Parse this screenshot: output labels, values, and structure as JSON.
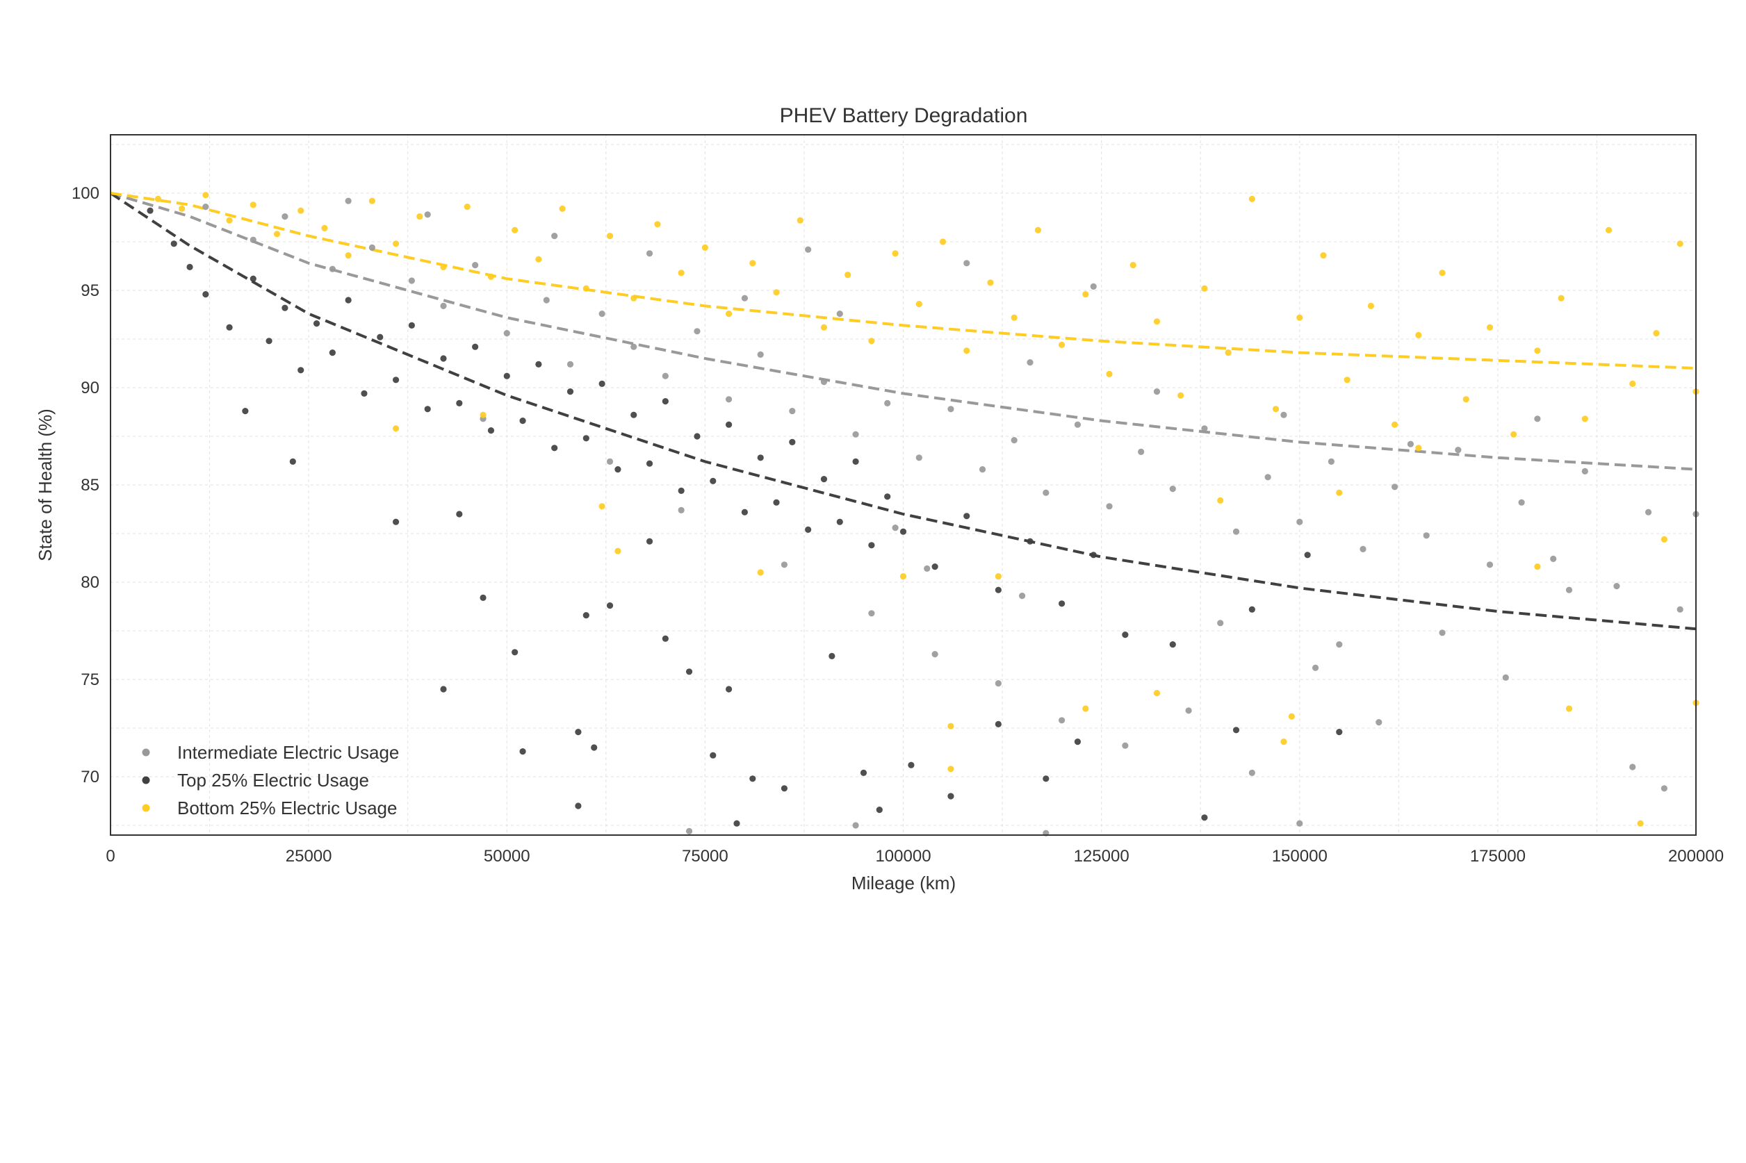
{
  "chart_data": {
    "type": "scatter",
    "title": "PHEV Battery Degradation",
    "xlabel": "Mileage (km)",
    "ylabel": "State of Health (%)",
    "xlim": [
      0,
      200000
    ],
    "ylim": [
      67,
      103
    ],
    "x_ticks": [
      "0",
      "25000",
      "50000",
      "75000",
      "100000",
      "125000",
      "150000",
      "175000",
      "200000"
    ],
    "y_ticks": [
      "70",
      "75",
      "80",
      "85",
      "90",
      "95",
      "100"
    ],
    "grid": true,
    "legend_position": "lower-left",
    "series": [
      {
        "name": "Intermediate Electric Usage",
        "color": "#999999",
        "trend": [
          [
            0,
            100
          ],
          [
            10000,
            98.8
          ],
          [
            25000,
            96.4
          ],
          [
            50000,
            93.6
          ],
          [
            75000,
            91.5
          ],
          [
            100000,
            89.7
          ],
          [
            125000,
            88.3
          ],
          [
            150000,
            87.2
          ],
          [
            175000,
            86.4
          ],
          [
            200000,
            85.8
          ]
        ],
        "points": [
          [
            12000,
            99.3
          ],
          [
            18000,
            97.6
          ],
          [
            22000,
            98.8
          ],
          [
            28000,
            96.1
          ],
          [
            33000,
            97.2
          ],
          [
            38000,
            95.5
          ],
          [
            42000,
            94.2
          ],
          [
            46000,
            96.3
          ],
          [
            50000,
            92.8
          ],
          [
            55000,
            94.5
          ],
          [
            58000,
            91.2
          ],
          [
            62000,
            93.8
          ],
          [
            66000,
            92.1
          ],
          [
            70000,
            90.6
          ],
          [
            74000,
            92.9
          ],
          [
            78000,
            89.4
          ],
          [
            82000,
            91.7
          ],
          [
            86000,
            88.8
          ],
          [
            90000,
            90.3
          ],
          [
            94000,
            87.6
          ],
          [
            98000,
            89.2
          ],
          [
            102000,
            86.4
          ],
          [
            106000,
            88.9
          ],
          [
            110000,
            85.8
          ],
          [
            114000,
            87.3
          ],
          [
            118000,
            84.6
          ],
          [
            122000,
            88.1
          ],
          [
            126000,
            83.9
          ],
          [
            130000,
            86.7
          ],
          [
            134000,
            84.8
          ],
          [
            138000,
            87.9
          ],
          [
            142000,
            82.6
          ],
          [
            146000,
            85.4
          ],
          [
            150000,
            83.1
          ],
          [
            154000,
            86.2
          ],
          [
            158000,
            81.7
          ],
          [
            162000,
            84.9
          ],
          [
            166000,
            82.4
          ],
          [
            170000,
            86.8
          ],
          [
            174000,
            80.9
          ],
          [
            178000,
            84.1
          ],
          [
            182000,
            81.2
          ],
          [
            186000,
            85.7
          ],
          [
            190000,
            79.8
          ],
          [
            194000,
            83.6
          ],
          [
            198000,
            78.6
          ],
          [
            47000,
            88.4
          ],
          [
            63000,
            86.2
          ],
          [
            72000,
            83.7
          ],
          [
            85000,
            80.9
          ],
          [
            96000,
            78.4
          ],
          [
            104000,
            76.3
          ],
          [
            112000,
            74.8
          ],
          [
            120000,
            72.9
          ],
          [
            128000,
            71.6
          ],
          [
            136000,
            73.4
          ],
          [
            144000,
            70.2
          ],
          [
            152000,
            75.6
          ],
          [
            160000,
            72.8
          ],
          [
            168000,
            77.4
          ],
          [
            176000,
            75.1
          ],
          [
            184000,
            79.6
          ],
          [
            192000,
            70.5
          ],
          [
            196000,
            69.4
          ],
          [
            88000,
            97.1
          ],
          [
            108000,
            96.4
          ],
          [
            124000,
            95.2
          ],
          [
            30000,
            99.6
          ],
          [
            40000,
            98.9
          ],
          [
            56000,
            97.8
          ],
          [
            68000,
            96.9
          ],
          [
            80000,
            94.6
          ],
          [
            92000,
            93.8
          ],
          [
            116000,
            91.3
          ],
          [
            132000,
            89.8
          ],
          [
            148000,
            88.6
          ],
          [
            164000,
            87.1
          ],
          [
            180000,
            88.4
          ],
          [
            200000,
            83.5
          ],
          [
            99000,
            82.8
          ],
          [
            103000,
            80.7
          ],
          [
            115000,
            79.3
          ],
          [
            140000,
            77.9
          ],
          [
            155000,
            76.8
          ],
          [
            73000,
            67.2
          ],
          [
            94000,
            67.5
          ],
          [
            118000,
            67.1
          ],
          [
            150000,
            67.6
          ]
        ]
      },
      {
        "name": "Top 25% Electric Usage",
        "color": "#404040",
        "trend": [
          [
            0,
            100
          ],
          [
            10000,
            97.3
          ],
          [
            25000,
            93.8
          ],
          [
            50000,
            89.6
          ],
          [
            75000,
            86.2
          ],
          [
            100000,
            83.5
          ],
          [
            125000,
            81.3
          ],
          [
            150000,
            79.7
          ],
          [
            175000,
            78.5
          ],
          [
            200000,
            77.6
          ]
        ],
        "points": [
          [
            5000,
            99.1
          ],
          [
            8000,
            97.4
          ],
          [
            10000,
            96.2
          ],
          [
            12000,
            94.8
          ],
          [
            15000,
            93.1
          ],
          [
            18000,
            95.6
          ],
          [
            20000,
            92.4
          ],
          [
            22000,
            94.1
          ],
          [
            24000,
            90.9
          ],
          [
            26000,
            93.3
          ],
          [
            28000,
            91.8
          ],
          [
            30000,
            94.5
          ],
          [
            32000,
            89.7
          ],
          [
            34000,
            92.6
          ],
          [
            36000,
            90.4
          ],
          [
            38000,
            93.2
          ],
          [
            40000,
            88.9
          ],
          [
            42000,
            91.5
          ],
          [
            44000,
            89.2
          ],
          [
            46000,
            92.1
          ],
          [
            48000,
            87.8
          ],
          [
            50000,
            90.6
          ],
          [
            52000,
            88.3
          ],
          [
            54000,
            91.2
          ],
          [
            56000,
            86.9
          ],
          [
            58000,
            89.8
          ],
          [
            60000,
            87.4
          ],
          [
            62000,
            90.2
          ],
          [
            64000,
            85.8
          ],
          [
            66000,
            88.6
          ],
          [
            68000,
            86.1
          ],
          [
            70000,
            89.3
          ],
          [
            72000,
            84.7
          ],
          [
            74000,
            87.5
          ],
          [
            76000,
            85.2
          ],
          [
            78000,
            88.1
          ],
          [
            80000,
            83.6
          ],
          [
            82000,
            86.4
          ],
          [
            84000,
            84.1
          ],
          [
            86000,
            87.2
          ],
          [
            88000,
            82.7
          ],
          [
            90000,
            85.3
          ],
          [
            92000,
            83.1
          ],
          [
            94000,
            86.2
          ],
          [
            96000,
            81.9
          ],
          [
            98000,
            84.4
          ],
          [
            100000,
            82.6
          ],
          [
            104000,
            80.8
          ],
          [
            108000,
            83.4
          ],
          [
            112000,
            79.6
          ],
          [
            116000,
            82.1
          ],
          [
            120000,
            78.9
          ],
          [
            124000,
            81.4
          ],
          [
            128000,
            77.3
          ],
          [
            17000,
            88.8
          ],
          [
            23000,
            86.2
          ],
          [
            36000,
            83.1
          ],
          [
            44000,
            83.5
          ],
          [
            47000,
            79.2
          ],
          [
            51000,
            76.4
          ],
          [
            42000,
            74.5
          ],
          [
            52000,
            71.3
          ],
          [
            59000,
            72.3
          ],
          [
            61000,
            71.5
          ],
          [
            59000,
            68.5
          ],
          [
            70000,
            77.1
          ],
          [
            73000,
            75.4
          ],
          [
            78000,
            74.5
          ],
          [
            79000,
            67.6
          ],
          [
            81000,
            69.9
          ],
          [
            85000,
            69.4
          ],
          [
            91000,
            76.2
          ],
          [
            95000,
            70.2
          ],
          [
            97000,
            68.3
          ],
          [
            101000,
            70.6
          ],
          [
            106000,
            69.0
          ],
          [
            112000,
            72.7
          ],
          [
            118000,
            69.9
          ],
          [
            122000,
            71.8
          ],
          [
            134000,
            76.8
          ],
          [
            138000,
            67.9
          ],
          [
            142000,
            72.4
          ],
          [
            144000,
            78.6
          ],
          [
            151000,
            81.4
          ],
          [
            155000,
            72.3
          ],
          [
            60000,
            78.3
          ],
          [
            63000,
            78.8
          ],
          [
            68000,
            82.1
          ],
          [
            76000,
            71.1
          ]
        ]
      },
      {
        "name": "Bottom 25% Electric Usage",
        "color": "#FFCC22",
        "trend": [
          [
            0,
            100
          ],
          [
            10000,
            99.4
          ],
          [
            25000,
            97.8
          ],
          [
            50000,
            95.6
          ],
          [
            75000,
            94.2
          ],
          [
            100000,
            93.2
          ],
          [
            125000,
            92.4
          ],
          [
            150000,
            91.8
          ],
          [
            175000,
            91.4
          ],
          [
            200000,
            91.0
          ]
        ],
        "points": [
          [
            6000,
            99.7
          ],
          [
            9000,
            99.2
          ],
          [
            12000,
            99.9
          ],
          [
            15000,
            98.6
          ],
          [
            18000,
            99.4
          ],
          [
            21000,
            97.9
          ],
          [
            24000,
            99.1
          ],
          [
            27000,
            98.2
          ],
          [
            30000,
            96.8
          ],
          [
            33000,
            99.6
          ],
          [
            36000,
            97.4
          ],
          [
            39000,
            98.8
          ],
          [
            42000,
            96.2
          ],
          [
            45000,
            99.3
          ],
          [
            48000,
            95.7
          ],
          [
            51000,
            98.1
          ],
          [
            54000,
            96.6
          ],
          [
            57000,
            99.2
          ],
          [
            60000,
            95.1
          ],
          [
            63000,
            97.8
          ],
          [
            66000,
            94.6
          ],
          [
            69000,
            98.4
          ],
          [
            72000,
            95.9
          ],
          [
            75000,
            97.2
          ],
          [
            78000,
            93.8
          ],
          [
            81000,
            96.4
          ],
          [
            84000,
            94.9
          ],
          [
            87000,
            98.6
          ],
          [
            90000,
            93.1
          ],
          [
            93000,
            95.8
          ],
          [
            96000,
            92.4
          ],
          [
            99000,
            96.9
          ],
          [
            102000,
            94.3
          ],
          [
            105000,
            97.5
          ],
          [
            108000,
            91.9
          ],
          [
            111000,
            95.4
          ],
          [
            114000,
            93.6
          ],
          [
            117000,
            98.1
          ],
          [
            120000,
            92.2
          ],
          [
            123000,
            94.8
          ],
          [
            126000,
            90.7
          ],
          [
            129000,
            96.3
          ],
          [
            132000,
            93.4
          ],
          [
            135000,
            89.6
          ],
          [
            138000,
            95.1
          ],
          [
            141000,
            91.8
          ],
          [
            144000,
            99.7
          ],
          [
            147000,
            88.9
          ],
          [
            150000,
            93.6
          ],
          [
            153000,
            96.8
          ],
          [
            156000,
            90.4
          ],
          [
            159000,
            94.2
          ],
          [
            162000,
            88.1
          ],
          [
            165000,
            92.7
          ],
          [
            168000,
            95.9
          ],
          [
            171000,
            89.4
          ],
          [
            174000,
            93.1
          ],
          [
            177000,
            87.6
          ],
          [
            180000,
            91.9
          ],
          [
            183000,
            94.6
          ],
          [
            186000,
            88.4
          ],
          [
            189000,
            98.1
          ],
          [
            192000,
            90.2
          ],
          [
            195000,
            92.8
          ],
          [
            198000,
            97.4
          ],
          [
            200000,
            89.8
          ],
          [
            36000,
            87.9
          ],
          [
            47000,
            88.6
          ],
          [
            62000,
            83.9
          ],
          [
            64000,
            81.6
          ],
          [
            82000,
            80.5
          ],
          [
            100000,
            80.3
          ],
          [
            106000,
            72.6
          ],
          [
            106000,
            70.4
          ],
          [
            112000,
            80.3
          ],
          [
            123000,
            73.5
          ],
          [
            132000,
            74.3
          ],
          [
            148000,
            71.8
          ],
          [
            149000,
            73.1
          ],
          [
            165000,
            86.9
          ],
          [
            180000,
            80.8
          ],
          [
            184000,
            73.5
          ],
          [
            193000,
            67.6
          ],
          [
            196000,
            82.2
          ],
          [
            200000,
            73.8
          ],
          [
            155000,
            84.6
          ],
          [
            140000,
            84.2
          ]
        ]
      }
    ]
  }
}
